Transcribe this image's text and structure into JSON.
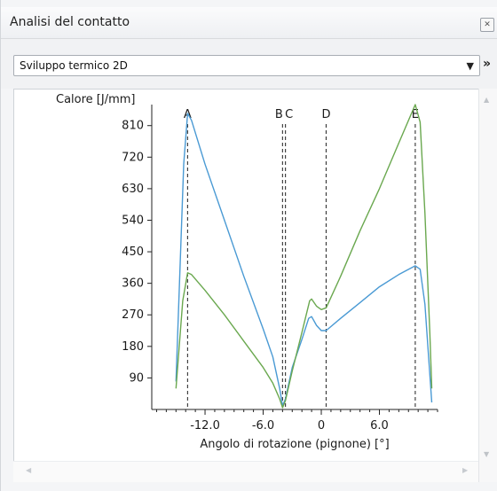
{
  "window": {
    "title": "Analisi del contatto"
  },
  "toolbar": {
    "selected_view": "Sviluppo termico 2D",
    "more_label": "»"
  },
  "icons": {
    "close": "close-icon",
    "dropdown": "chevron-down-icon",
    "more": "chevron-double-right-icon"
  },
  "chart_data": {
    "type": "line",
    "title": "",
    "ylabel": "Calore [J/mm]",
    "xlabel": "Angolo di rotazione (pignone) [°]",
    "xlim": [
      -17.5,
      12
    ],
    "ylim": [
      0,
      870
    ],
    "x_ticks": [
      -12,
      -6,
      0,
      6
    ],
    "x_tick_labels": [
      "-12.0",
      "-6.0",
      "0",
      "6.0"
    ],
    "y_ticks": [
      90,
      180,
      270,
      360,
      450,
      540,
      630,
      720,
      810
    ],
    "y_tick_labels": [
      "90",
      "180",
      "270",
      "360",
      "450",
      "540",
      "630",
      "720",
      "810"
    ],
    "markers": [
      {
        "label": "A",
        "x": -13.8
      },
      {
        "label": "B",
        "x": -4.0
      },
      {
        "label": "C",
        "x": -3.7
      },
      {
        "label": "D",
        "x": 0.5
      },
      {
        "label": "E",
        "x": 9.7
      }
    ],
    "series": [
      {
        "color": "#4a9ad4",
        "points": [
          [
            -15.0,
            80
          ],
          [
            -14.2,
            700
          ],
          [
            -13.8,
            845
          ],
          [
            -13.4,
            825
          ],
          [
            -12.0,
            700
          ],
          [
            -10.0,
            540
          ],
          [
            -8.0,
            380
          ],
          [
            -6.0,
            230
          ],
          [
            -5.0,
            150
          ],
          [
            -4.3,
            60
          ],
          [
            -4.0,
            10
          ],
          [
            -3.7,
            30
          ],
          [
            -3.0,
            120
          ],
          [
            -2.0,
            200
          ],
          [
            -1.3,
            260
          ],
          [
            -1.0,
            265
          ],
          [
            -0.5,
            240
          ],
          [
            0.0,
            225
          ],
          [
            0.5,
            225
          ],
          [
            2.0,
            260
          ],
          [
            4.0,
            305
          ],
          [
            6.0,
            350
          ],
          [
            8.0,
            385
          ],
          [
            9.7,
            410
          ],
          [
            10.2,
            400
          ],
          [
            10.7,
            300
          ],
          [
            11.2,
            100
          ],
          [
            11.4,
            20
          ]
        ]
      },
      {
        "color": "#6aa84f",
        "points": [
          [
            -15.0,
            60
          ],
          [
            -14.3,
            310
          ],
          [
            -13.8,
            390
          ],
          [
            -13.4,
            385
          ],
          [
            -12.0,
            340
          ],
          [
            -10.0,
            270
          ],
          [
            -8.0,
            195
          ],
          [
            -6.0,
            120
          ],
          [
            -5.0,
            75
          ],
          [
            -4.3,
            30
          ],
          [
            -4.0,
            5
          ],
          [
            -3.7,
            25
          ],
          [
            -3.0,
            110
          ],
          [
            -2.0,
            220
          ],
          [
            -1.2,
            310
          ],
          [
            -1.0,
            315
          ],
          [
            -0.5,
            295
          ],
          [
            0.0,
            285
          ],
          [
            0.5,
            290
          ],
          [
            2.0,
            380
          ],
          [
            4.0,
            510
          ],
          [
            6.0,
            630
          ],
          [
            8.0,
            760
          ],
          [
            9.7,
            870
          ],
          [
            10.2,
            820
          ],
          [
            10.7,
            560
          ],
          [
            11.2,
            220
          ],
          [
            11.4,
            60
          ]
        ]
      }
    ]
  }
}
